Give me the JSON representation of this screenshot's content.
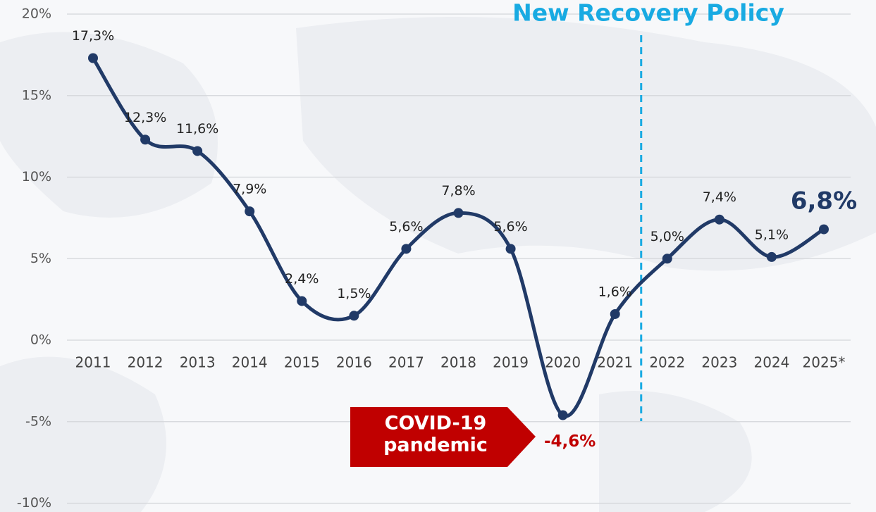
{
  "chart_data": {
    "type": "line",
    "categories": [
      "2011",
      "2012",
      "2013",
      "2014",
      "2015",
      "2016",
      "2017",
      "2018",
      "2019",
      "2020",
      "2021",
      "2022",
      "2023",
      "2024",
      "2025*"
    ],
    "series": [
      {
        "color": "#213a67",
        "values": [
          17.3,
          12.3,
          11.6,
          7.9,
          2.4,
          1.5,
          5.6,
          7.8,
          5.6,
          -4.6,
          1.6,
          5.0,
          7.4,
          5.1,
          6.8
        ],
        "value_labels": [
          "17,3%",
          "12,3%",
          "11,6%",
          "7,9%",
          "2,4%",
          "1,5%",
          "5,6%",
          "7,8%",
          "5,6%",
          "-4,6%",
          "1,6%",
          "5,0%",
          "7,4%",
          "5,1%",
          "6,8%"
        ]
      }
    ],
    "ylim": [
      -10,
      20
    ],
    "yticks": [
      {
        "value": -10,
        "label": "-10%"
      },
      {
        "value": -5,
        "label": "-5%"
      },
      {
        "value": 0,
        "label": "0%"
      },
      {
        "value": 5,
        "label": "5%"
      },
      {
        "value": 10,
        "label": "10%"
      },
      {
        "value": 15,
        "label": "15%"
      },
      {
        "value": 20,
        "label": "20%"
      }
    ],
    "grid": true,
    "annotations": [
      {
        "text": "New Recovery Policy",
        "color": "#18aae2"
      },
      {
        "lines": [
          "COVID-19",
          "pandemic"
        ],
        "color": "#c00000"
      }
    ]
  }
}
